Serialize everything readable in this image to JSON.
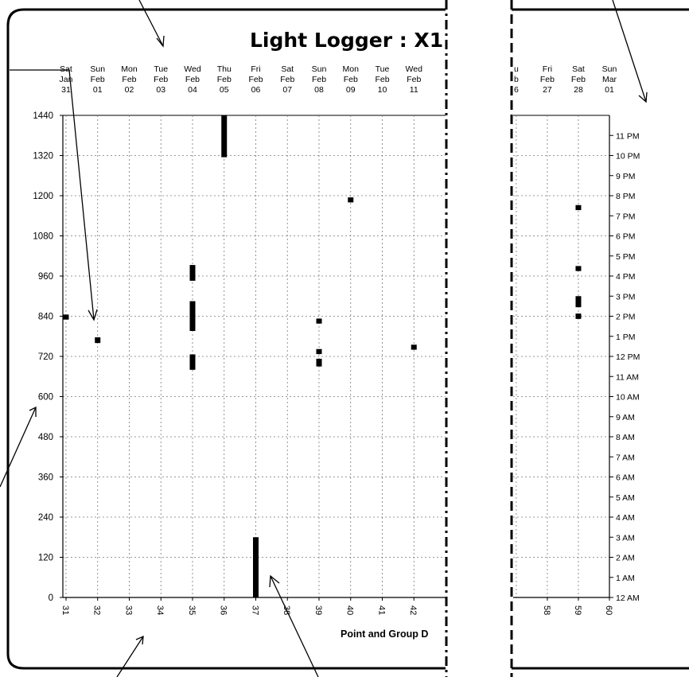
{
  "chart_data": {
    "type": "scatter",
    "title": "Light Logger : X1",
    "xlabel": "Point and Group D",
    "ylabel": "",
    "grid": true,
    "xlim_left": [
      30.9,
      43
    ],
    "xlim_right": [
      56.9,
      60
    ],
    "ylim": [
      0,
      1440
    ],
    "y_ticks": [
      0,
      120,
      240,
      360,
      480,
      600,
      720,
      840,
      960,
      1080,
      1200,
      1320,
      1440
    ],
    "x_ticks_left": [
      31,
      32,
      33,
      34,
      35,
      36,
      37,
      38,
      39,
      40,
      41,
      42
    ],
    "x_ticks_right": [
      58,
      59,
      60
    ],
    "date_labels_left": [
      {
        "x": 31,
        "day": "Sat",
        "month": "Jan",
        "date": "31"
      },
      {
        "x": 32,
        "day": "Sun",
        "month": "Feb",
        "date": "01"
      },
      {
        "x": 33,
        "day": "Mon",
        "month": "Feb",
        "date": "02"
      },
      {
        "x": 34,
        "day": "Tue",
        "month": "Feb",
        "date": "03"
      },
      {
        "x": 35,
        "day": "Wed",
        "month": "Feb",
        "date": "04"
      },
      {
        "x": 36,
        "day": "Thu",
        "month": "Feb",
        "date": "05"
      },
      {
        "x": 37,
        "day": "Fri",
        "month": "Feb",
        "date": "06"
      },
      {
        "x": 38,
        "day": "Sat",
        "month": "Feb",
        "date": "07"
      },
      {
        "x": 39,
        "day": "Sun",
        "month": "Feb",
        "date": "08"
      },
      {
        "x": 40,
        "day": "Mon",
        "month": "Feb",
        "date": "09"
      },
      {
        "x": 41,
        "day": "Tue",
        "month": "Feb",
        "date": "10"
      },
      {
        "x": 42,
        "day": "Wed",
        "month": "Feb",
        "date": "11"
      }
    ],
    "date_labels_right": [
      {
        "x": 57,
        "day": "u",
        "month": "b",
        "date": "6"
      },
      {
        "x": 58,
        "day": "Fri",
        "month": "Feb",
        "date": "27"
      },
      {
        "x": 59,
        "day": "Sat",
        "month": "Feb",
        "date": "28"
      },
      {
        "x": 60,
        "day": "Sun",
        "month": "Mar",
        "date": "01"
      }
    ],
    "time_labels": [
      "12 AM",
      "1 AM",
      "2 AM",
      "3 AM",
      "4 AM",
      "5 AM",
      "6 AM",
      "7 AM",
      "8 AM",
      "9 AM",
      "10 AM",
      "11 AM",
      "12 PM",
      "1 PM",
      "2 PM",
      "3 PM",
      "4 PM",
      "5 PM",
      "6 PM",
      "7 PM",
      "8 PM",
      "9 PM",
      "10 PM",
      "11 PM"
    ],
    "segments": [
      {
        "x": 31,
        "y1": 830,
        "y2": 845
      },
      {
        "x": 32,
        "y1": 760,
        "y2": 777
      },
      {
        "x": 35,
        "y1": 946,
        "y2": 993
      },
      {
        "x": 35,
        "y1": 796,
        "y2": 885
      },
      {
        "x": 35,
        "y1": 680,
        "y2": 726
      },
      {
        "x": 36,
        "y1": 1315,
        "y2": 1440
      },
      {
        "x": 37,
        "y1": 0,
        "y2": 180
      },
      {
        "x": 39,
        "y1": 818,
        "y2": 833
      },
      {
        "x": 39,
        "y1": 727,
        "y2": 742
      },
      {
        "x": 39,
        "y1": 690,
        "y2": 713
      },
      {
        "x": 40,
        "y1": 1180,
        "y2": 1195
      },
      {
        "x": 42,
        "y1": 740,
        "y2": 755
      },
      {
        "x": 59,
        "y1": 1157,
        "y2": 1172
      },
      {
        "x": 59,
        "y1": 975,
        "y2": 990
      },
      {
        "x": 59,
        "y1": 867,
        "y2": 900
      },
      {
        "x": 59,
        "y1": 832,
        "y2": 848
      }
    ]
  }
}
